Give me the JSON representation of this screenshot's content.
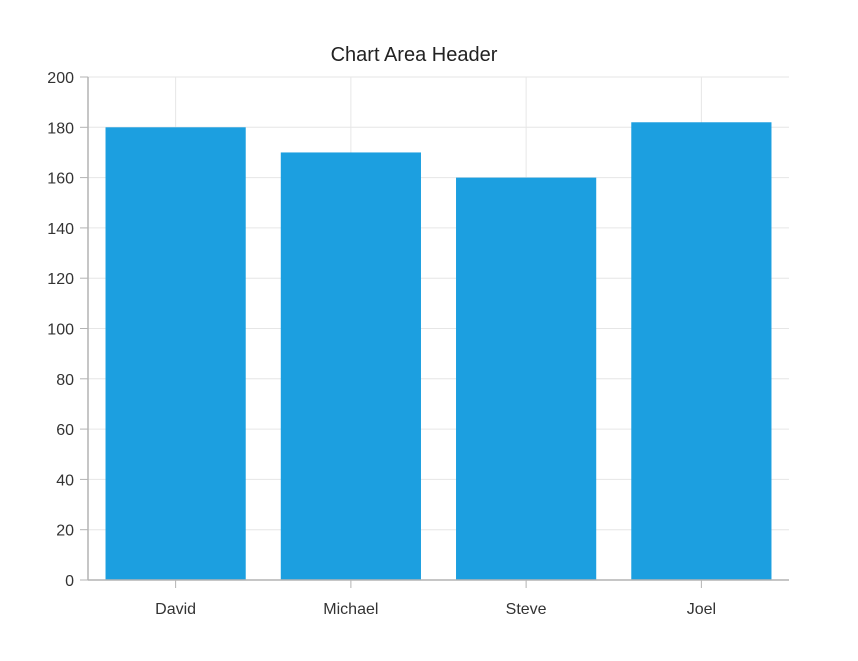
{
  "chart_data": {
    "type": "bar",
    "title": "Chart Area Header",
    "categories": [
      "David",
      "Michael",
      "Steve",
      "Joel"
    ],
    "values": [
      180,
      170,
      160,
      182
    ],
    "xlabel": "",
    "ylabel": "",
    "ylim": [
      0,
      200
    ],
    "yticks": [
      0,
      20,
      40,
      60,
      80,
      100,
      120,
      140,
      160,
      180,
      200
    ],
    "grid": true,
    "bar_color": "#1c9fe0",
    "grid_color": "#e6e6e6",
    "axis_color": "#b3b3b3"
  }
}
